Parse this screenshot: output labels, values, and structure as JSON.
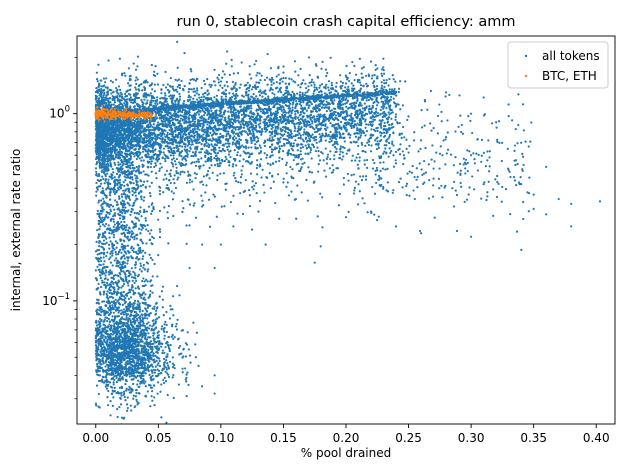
{
  "chart_data": {
    "type": "scatter",
    "title": "run 0, stablecoin crash capital efficiency: amm",
    "xlabel": "% pool drained",
    "ylabel": "internal, external rate ratio",
    "xlim": [
      -0.015,
      0.415
    ],
    "ylim": [
      0.022,
      2.6
    ],
    "yscale": "log",
    "x_ticks": [
      0.0,
      0.05,
      0.1,
      0.15,
      0.2,
      0.25,
      0.3,
      0.35,
      0.4
    ],
    "x_tick_labels": [
      "0.00",
      "0.05",
      "0.10",
      "0.15",
      "0.20",
      "0.25",
      "0.30",
      "0.35",
      "0.40"
    ],
    "y_major_ticks": [
      {
        "value": 1.0,
        "base": "10",
        "exp": "0"
      },
      {
        "value": 0.1,
        "base": "10",
        "exp": "−1"
      }
    ],
    "y_minor_ticks": [
      0.03,
      0.04,
      0.05,
      0.06,
      0.07,
      0.08,
      0.09,
      0.2,
      0.3,
      0.4,
      0.5,
      0.6,
      0.7,
      0.8,
      0.9,
      2.0
    ],
    "grid": false,
    "legend_position": "top-right",
    "series": [
      {
        "name": "all tokens",
        "color": "#1f77b4",
        "points": [
          [
            0.105,
            2.15
          ],
          [
            0.22,
            1.9
          ],
          [
            0.14,
            1.75
          ],
          [
            0.185,
            1.65
          ],
          [
            0.06,
            1.55
          ],
          [
            0.08,
            1.5
          ],
          [
            0.2,
            1.45
          ],
          [
            0.12,
            1.42
          ],
          [
            0.235,
            1.35
          ],
          [
            0.28,
            1.3
          ],
          [
            0.31,
            1.22
          ],
          [
            0.17,
            1.4
          ],
          [
            0.15,
            1.55
          ],
          [
            0.045,
            1.45
          ],
          [
            0.3,
            1.0
          ],
          [
            0.33,
            0.97
          ],
          [
            0.28,
            0.75
          ],
          [
            0.3,
            0.6
          ],
          [
            0.33,
            0.5
          ],
          [
            0.36,
            0.52
          ],
          [
            0.315,
            0.63
          ],
          [
            0.34,
            0.7
          ],
          [
            0.38,
            0.33
          ],
          [
            0.403,
            0.34
          ],
          [
            0.37,
            0.35
          ],
          [
            0.345,
            0.38
          ],
          [
            0.35,
            0.31
          ],
          [
            0.36,
            0.29
          ],
          [
            0.38,
            0.25
          ],
          [
            0.3,
            0.22
          ],
          [
            0.26,
            0.23
          ],
          [
            0.24,
            0.25
          ],
          [
            0.22,
            0.3
          ],
          [
            0.175,
            0.16
          ],
          [
            0.2,
            0.28
          ],
          [
            0.27,
            0.45
          ],
          [
            0.25,
            0.62
          ],
          [
            0.23,
            0.55
          ],
          [
            0.26,
            0.72
          ],
          [
            0.29,
            0.85
          ],
          [
            0.32,
            0.9
          ],
          [
            0.21,
            0.42
          ],
          [
            0.19,
            0.5
          ],
          [
            0.255,
            0.35
          ],
          [
            0.285,
            0.4
          ],
          [
            0.31,
            0.42
          ],
          [
            0.335,
            0.44
          ],
          [
            0.2,
            1.2
          ],
          [
            0.24,
            1.1
          ],
          [
            0.265,
            1.05
          ],
          [
            0.16,
            0.35
          ],
          [
            0.14,
            0.4
          ],
          [
            0.13,
            0.3
          ],
          [
            0.11,
            0.25
          ],
          [
            0.1,
            0.2
          ],
          [
            0.095,
            0.15
          ],
          [
            0.085,
            0.2
          ],
          [
            0.075,
            0.15
          ],
          [
            0.065,
            0.12
          ],
          [
            0.06,
            0.09
          ],
          [
            0.055,
            0.075
          ],
          [
            0.07,
            0.055
          ],
          [
            0.08,
            0.05
          ],
          [
            0.095,
            0.04
          ],
          [
            0.095,
            0.032
          ],
          [
            0.085,
            0.035
          ],
          [
            0.072,
            0.038
          ],
          [
            0.05,
            0.04
          ],
          [
            0.04,
            0.035
          ],
          [
            0.03,
            0.03
          ],
          [
            0.025,
            0.028
          ],
          [
            0.02,
            0.03
          ],
          [
            0.01,
            0.033
          ],
          [
            0.005,
            0.038
          ],
          [
            0.015,
            0.045
          ],
          [
            0.035,
            0.032
          ],
          [
            0.045,
            0.042
          ]
        ]
      },
      {
        "name": "BTC, ETH",
        "color": "#ff7f0e",
        "points": [
          [
            0.0,
            1.0
          ],
          [
            0.002,
            1.04
          ],
          [
            0.004,
            0.98
          ],
          [
            0.006,
            1.06
          ],
          [
            0.008,
            0.95
          ],
          [
            0.01,
            1.02
          ],
          [
            0.012,
            0.99
          ],
          [
            0.015,
            1.03
          ],
          [
            0.018,
            0.97
          ],
          [
            0.02,
            1.0
          ],
          [
            0.024,
            0.98
          ],
          [
            0.028,
            1.0
          ],
          [
            0.032,
            0.97
          ],
          [
            0.036,
            0.99
          ],
          [
            0.04,
            0.98
          ],
          [
            0.003,
            0.93
          ],
          [
            0.001,
            1.08
          ],
          [
            0.005,
            1.1
          ],
          [
            0.007,
            0.91
          ],
          [
            0.014,
            0.96
          ],
          [
            0.022,
            1.01
          ],
          [
            0.026,
            0.97
          ],
          [
            0.03,
            0.99
          ],
          [
            0.034,
            0.98
          ],
          [
            0.009,
            1.05
          ],
          [
            0.016,
            1.0
          ],
          [
            0.011,
            0.94
          ],
          [
            0.044,
            0.97
          ],
          [
            0.048,
            0.98
          ],
          [
            0.013,
            1.07
          ]
        ]
      }
    ]
  }
}
